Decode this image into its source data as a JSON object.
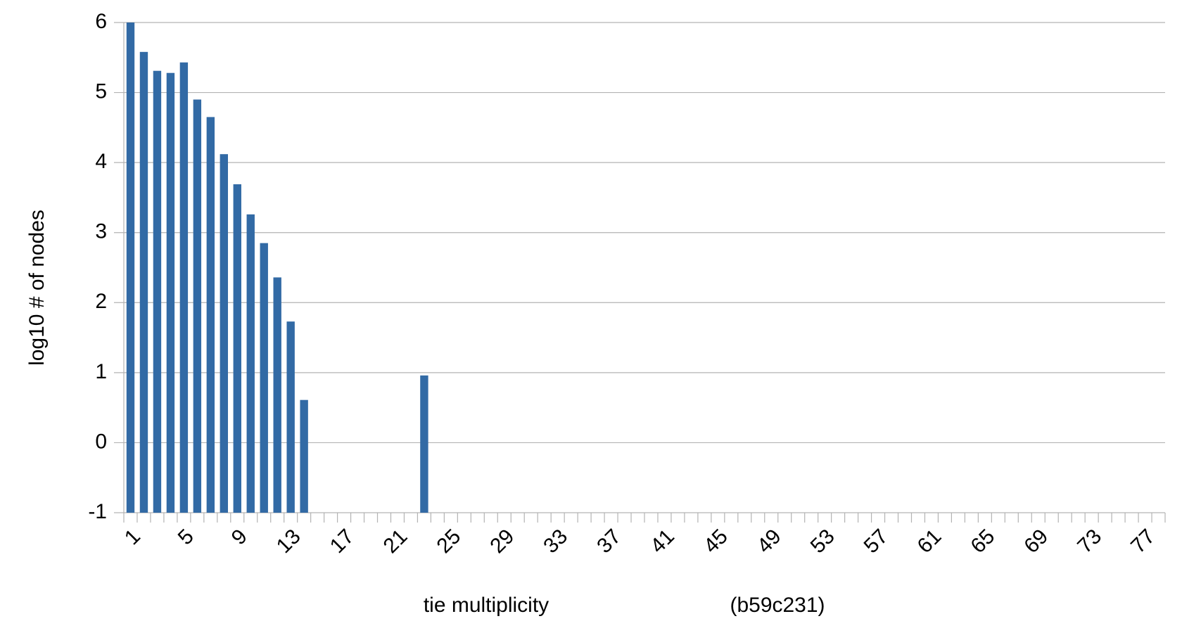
{
  "chart_data": {
    "type": "bar",
    "x_label": "tie multiplicity",
    "annotation": "(b59c231)",
    "y_label": "log10 # of nodes",
    "categories": [
      1,
      null,
      null,
      null,
      5,
      null,
      null,
      null,
      9,
      null,
      null,
      null,
      13,
      null,
      null,
      null,
      17,
      null,
      null,
      null,
      21,
      null,
      null,
      null,
      25,
      null,
      null,
      null,
      29,
      null,
      null,
      null,
      33,
      null,
      null,
      null,
      37,
      null,
      null,
      null,
      41,
      null,
      null,
      null,
      45,
      null,
      null,
      null,
      49,
      null,
      null,
      null,
      53,
      null,
      null,
      null,
      57,
      null,
      null,
      null,
      61,
      null,
      null,
      null,
      65,
      null,
      null,
      null,
      69,
      null,
      null,
      null,
      73,
      null,
      null,
      null,
      77,
      null
    ],
    "values": [
      6.0,
      5.58,
      5.31,
      5.28,
      5.43,
      4.9,
      4.65,
      4.12,
      3.69,
      3.26,
      2.85,
      2.36,
      1.73,
      0.61,
      null,
      null,
      null,
      null,
      null,
      null,
      null,
      null,
      0.96,
      null,
      null,
      null,
      null,
      null,
      null,
      null,
      null,
      null,
      null,
      null,
      null,
      null,
      null,
      null,
      null,
      null,
      null,
      null,
      null,
      null,
      null,
      null,
      null,
      null,
      null,
      null,
      null,
      null,
      null,
      null,
      null,
      null,
      null,
      null,
      null,
      null,
      null,
      null,
      null,
      null,
      null,
      null,
      null,
      null,
      null,
      null,
      null,
      null,
      null,
      null,
      null,
      null,
      null,
      null
    ],
    "color": "#326aa5",
    "ylim": [
      -1,
      6
    ],
    "yticks": [
      -1,
      0,
      1,
      2,
      3,
      4,
      5,
      6
    ],
    "grid": true
  }
}
